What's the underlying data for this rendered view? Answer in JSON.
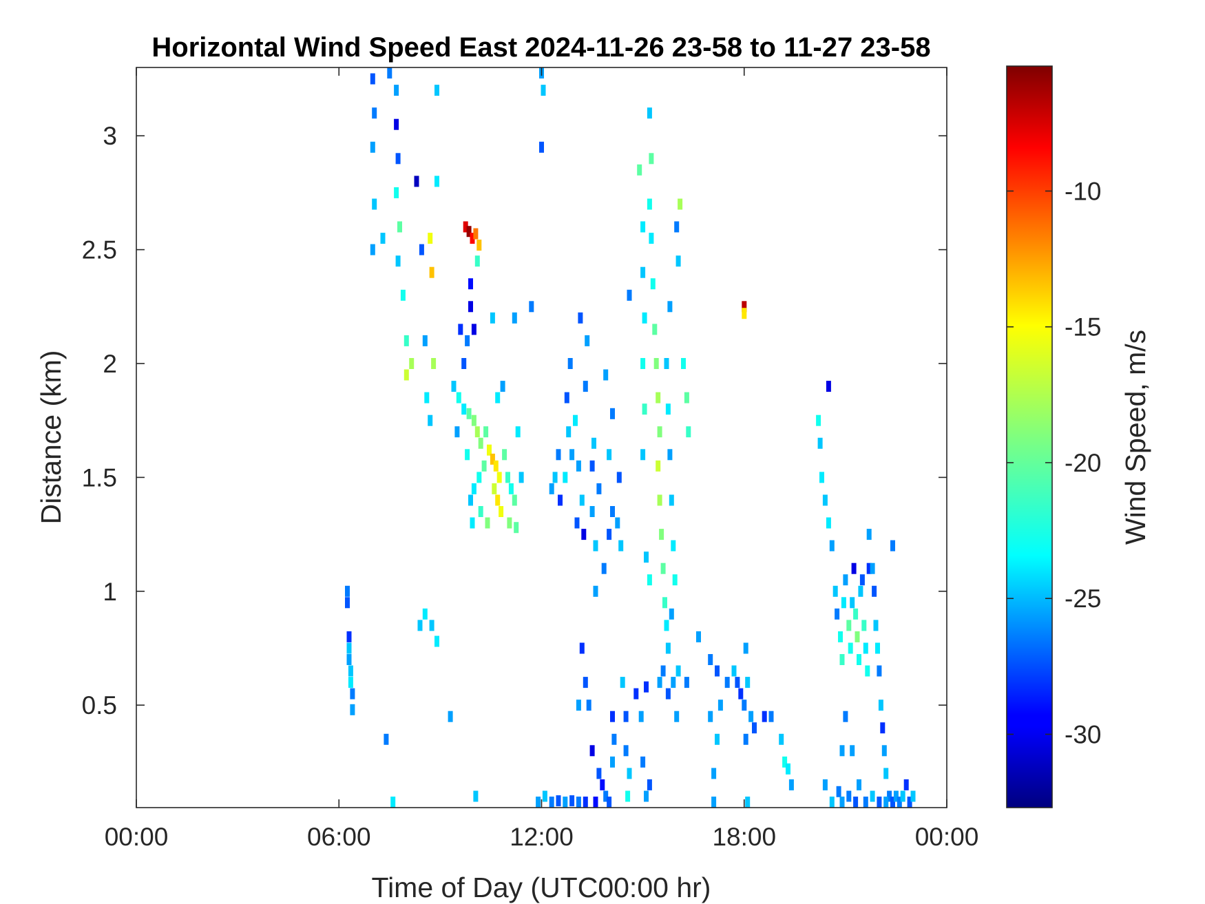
{
  "chart_data": {
    "type": "heatmap",
    "title": "Horizontal Wind Speed East 2024-11-26 23-58 to 11-27 23-58",
    "xlabel": "Time of Day (UTC00:00 hr)",
    "ylabel": "Distance (km)",
    "colorbar_label": "Wind Speed, m/s",
    "colormap": "jet",
    "x_ticks": [
      {
        "value": 0,
        "label": "00:00"
      },
      {
        "value": 6,
        "label": "06:00"
      },
      {
        "value": 12,
        "label": "12:00"
      },
      {
        "value": 18,
        "label": "18:00"
      },
      {
        "value": 24,
        "label": "00:00"
      }
    ],
    "y_ticks": [
      {
        "value": 0.5,
        "label": "0.5"
      },
      {
        "value": 1,
        "label": "1"
      },
      {
        "value": 1.5,
        "label": "1.5"
      },
      {
        "value": 2,
        "label": "2"
      },
      {
        "value": 2.5,
        "label": "2.5"
      },
      {
        "value": 3,
        "label": "3"
      }
    ],
    "colorbar_ticks": [
      {
        "value": -10,
        "label": "-10"
      },
      {
        "value": -15,
        "label": "-15"
      },
      {
        "value": -20,
        "label": "-20"
      },
      {
        "value": -25,
        "label": "-25"
      },
      {
        "value": -30,
        "label": "-30"
      }
    ],
    "xlim": [
      0,
      24
    ],
    "ylim": [
      0.05,
      3.3
    ],
    "clim": [
      -32.7,
      -5.4
    ],
    "grid": false,
    "cells": [
      [
        6.25,
        1.0,
        -26
      ],
      [
        6.25,
        0.95,
        -27
      ],
      [
        6.3,
        0.8,
        -28
      ],
      [
        6.3,
        0.75,
        -24
      ],
      [
        6.3,
        0.7,
        -25
      ],
      [
        6.35,
        0.65,
        -24
      ],
      [
        6.35,
        0.6,
        -23
      ],
      [
        6.4,
        0.55,
        -26
      ],
      [
        6.4,
        0.48,
        -25
      ],
      [
        7.0,
        3.25,
        -27
      ],
      [
        7.05,
        3.1,
        -26
      ],
      [
        7.0,
        2.95,
        -25
      ],
      [
        7.05,
        2.7,
        -24
      ],
      [
        7.0,
        2.5,
        -25
      ],
      [
        7.3,
        2.55,
        -24
      ],
      [
        7.5,
        3.3,
        -26
      ],
      [
        7.7,
        3.2,
        -25
      ],
      [
        7.7,
        3.05,
        -30
      ],
      [
        7.75,
        2.9,
        -27
      ],
      [
        7.7,
        2.75,
        -22
      ],
      [
        7.8,
        2.6,
        -20
      ],
      [
        7.75,
        2.45,
        -24
      ],
      [
        7.9,
        2.3,
        -22
      ],
      [
        8.0,
        2.1,
        -21
      ],
      [
        8.0,
        1.95,
        -17
      ],
      [
        8.15,
        2.0,
        -18
      ],
      [
        8.3,
        2.8,
        -31
      ],
      [
        8.45,
        2.5,
        -27
      ],
      [
        8.55,
        2.1,
        -25
      ],
      [
        8.7,
        2.55,
        -16
      ],
      [
        8.75,
        2.4,
        -14
      ],
      [
        8.8,
        2.0,
        -18
      ],
      [
        8.9,
        3.2,
        -24
      ],
      [
        8.9,
        2.8,
        -23
      ],
      [
        8.6,
        1.85,
        -23
      ],
      [
        8.7,
        1.75,
        -24
      ],
      [
        8.4,
        0.85,
        -24
      ],
      [
        8.55,
        0.9,
        -23
      ],
      [
        8.75,
        0.85,
        -24
      ],
      [
        8.9,
        0.78,
        -23
      ],
      [
        7.4,
        0.35,
        -26
      ],
      [
        7.6,
        0.05,
        -23
      ],
      [
        9.3,
        0.45,
        -25
      ],
      [
        9.75,
        2.6,
        -8
      ],
      [
        9.85,
        2.58,
        -6
      ],
      [
        9.95,
        2.55,
        -9
      ],
      [
        10.05,
        2.57,
        -12
      ],
      [
        10.15,
        2.52,
        -14
      ],
      [
        10.1,
        2.45,
        -21
      ],
      [
        9.9,
        2.35,
        -29
      ],
      [
        9.9,
        2.25,
        -30
      ],
      [
        9.6,
        2.15,
        -28
      ],
      [
        9.8,
        2.1,
        -26
      ],
      [
        10.0,
        2.15,
        -30
      ],
      [
        9.4,
        1.9,
        -24
      ],
      [
        9.55,
        1.85,
        -22
      ],
      [
        9.7,
        1.8,
        -23
      ],
      [
        9.85,
        1.78,
        -20
      ],
      [
        10.0,
        1.75,
        -19
      ],
      [
        10.1,
        1.7,
        -18
      ],
      [
        10.2,
        1.65,
        -19
      ],
      [
        10.35,
        1.7,
        -20
      ],
      [
        10.45,
        1.62,
        -16
      ],
      [
        10.55,
        1.58,
        -14
      ],
      [
        10.65,
        1.55,
        -15
      ],
      [
        10.75,
        1.5,
        -16
      ],
      [
        10.6,
        1.45,
        -17
      ],
      [
        10.7,
        1.4,
        -15
      ],
      [
        10.8,
        1.35,
        -16
      ],
      [
        10.3,
        1.55,
        -20
      ],
      [
        10.15,
        1.5,
        -22
      ],
      [
        10.0,
        1.45,
        -23
      ],
      [
        9.9,
        1.4,
        -24
      ],
      [
        10.2,
        1.35,
        -21
      ],
      [
        10.4,
        1.3,
        -19
      ],
      [
        10.9,
        1.6,
        -20
      ],
      [
        11.0,
        1.5,
        -21
      ],
      [
        11.1,
        1.45,
        -22
      ],
      [
        11.2,
        1.4,
        -20
      ],
      [
        11.05,
        1.3,
        -19
      ],
      [
        11.25,
        1.28,
        -20
      ],
      [
        11.3,
        1.7,
        -23
      ],
      [
        11.4,
        1.5,
        -24
      ],
      [
        10.7,
        1.85,
        -23
      ],
      [
        10.85,
        1.9,
        -25
      ],
      [
        11.2,
        2.2,
        -25
      ],
      [
        10.55,
        2.2,
        -24
      ],
      [
        9.7,
        2.0,
        -27
      ],
      [
        9.5,
        1.7,
        -25
      ],
      [
        9.8,
        1.6,
        -22
      ],
      [
        9.95,
        1.3,
        -23
      ],
      [
        10.05,
        0.1,
        -24
      ],
      [
        11.7,
        2.25,
        -26
      ],
      [
        12.0,
        3.3,
        -25
      ],
      [
        12.05,
        3.2,
        -24
      ],
      [
        12.0,
        2.95,
        -27
      ],
      [
        12.3,
        1.45,
        -25
      ],
      [
        12.4,
        1.5,
        -24
      ],
      [
        12.5,
        1.6,
        -26
      ],
      [
        12.55,
        1.4,
        -28
      ],
      [
        12.7,
        1.5,
        -23
      ],
      [
        12.8,
        1.7,
        -24
      ],
      [
        12.9,
        1.6,
        -25
      ],
      [
        12.75,
        1.85,
        -27
      ],
      [
        12.85,
        2.0,
        -26
      ],
      [
        13.0,
        1.75,
        -23
      ],
      [
        13.1,
        1.55,
        -25
      ],
      [
        13.2,
        1.4,
        -24
      ],
      [
        13.3,
        1.9,
        -26
      ],
      [
        13.15,
        2.2,
        -27
      ],
      [
        13.35,
        2.1,
        -25
      ],
      [
        13.05,
        1.3,
        -27
      ],
      [
        13.25,
        1.25,
        -30
      ],
      [
        13.5,
        1.35,
        -25
      ],
      [
        13.6,
        1.2,
        -24
      ],
      [
        13.7,
        1.45,
        -26
      ],
      [
        13.5,
        1.55,
        -27
      ],
      [
        13.55,
        1.65,
        -24
      ],
      [
        13.9,
        1.95,
        -25
      ],
      [
        14.0,
        1.6,
        -24
      ],
      [
        14.1,
        1.35,
        -26
      ],
      [
        14.25,
        1.3,
        -25
      ],
      [
        14.3,
        1.5,
        -27
      ],
      [
        14.35,
        1.2,
        -24
      ],
      [
        14.1,
        1.78,
        -26
      ],
      [
        13.85,
        1.1,
        -26
      ],
      [
        14.0,
        1.25,
        -27
      ],
      [
        13.6,
        1.0,
        -25
      ],
      [
        14.6,
        2.3,
        -26
      ],
      [
        14.9,
        2.85,
        -20
      ],
      [
        15.0,
        2.6,
        -23
      ],
      [
        15.0,
        2.4,
        -24
      ],
      [
        15.05,
        2.2,
        -23
      ],
      [
        15.0,
        2.0,
        -22
      ],
      [
        15.05,
        1.8,
        -21
      ],
      [
        15.0,
        1.6,
        -24
      ],
      [
        15.2,
        3.1,
        -24
      ],
      [
        15.25,
        2.9,
        -20
      ],
      [
        15.2,
        2.7,
        -22
      ],
      [
        15.25,
        2.55,
        -23
      ],
      [
        15.3,
        2.35,
        -22
      ],
      [
        15.35,
        2.15,
        -20
      ],
      [
        15.4,
        2.0,
        -19
      ],
      [
        15.45,
        1.85,
        -18
      ],
      [
        15.5,
        1.7,
        -19
      ],
      [
        15.45,
        1.55,
        -17
      ],
      [
        15.5,
        1.4,
        -18
      ],
      [
        15.55,
        1.25,
        -19
      ],
      [
        15.6,
        1.1,
        -20
      ],
      [
        15.65,
        0.95,
        -21
      ],
      [
        15.7,
        0.85,
        -23
      ],
      [
        15.75,
        0.75,
        -24
      ],
      [
        15.8,
        2.25,
        -25
      ],
      [
        15.7,
        2.0,
        -24
      ],
      [
        15.75,
        1.8,
        -23
      ],
      [
        15.8,
        1.6,
        -25
      ],
      [
        15.85,
        1.4,
        -24
      ],
      [
        15.9,
        1.2,
        -23
      ],
      [
        15.95,
        1.05,
        -22
      ],
      [
        15.85,
        0.9,
        -25
      ],
      [
        16.1,
        2.7,
        -18
      ],
      [
        16.05,
        2.45,
        -24
      ],
      [
        16.2,
        2.0,
        -22
      ],
      [
        16.3,
        1.85,
        -20
      ],
      [
        16.35,
        1.7,
        -21
      ],
      [
        16.0,
        2.6,
        -26
      ],
      [
        15.1,
        1.15,
        -24
      ],
      [
        15.2,
        1.05,
        -22
      ],
      [
        18.0,
        2.25,
        -7
      ],
      [
        18.0,
        2.22,
        -15
      ],
      [
        13.2,
        0.75,
        -28
      ],
      [
        13.3,
        0.6,
        -27
      ],
      [
        13.4,
        0.5,
        -26
      ],
      [
        13.1,
        0.5,
        -25
      ],
      [
        13.5,
        0.3,
        -30
      ],
      [
        13.7,
        0.2,
        -27
      ],
      [
        13.8,
        0.15,
        -29
      ],
      [
        13.9,
        0.1,
        -26
      ],
      [
        14.1,
        0.45,
        -28
      ],
      [
        14.15,
        0.35,
        -26
      ],
      [
        14.1,
        0.25,
        -25
      ],
      [
        14.0,
        0.05,
        -27
      ],
      [
        13.6,
        0.05,
        -29
      ],
      [
        13.3,
        0.05,
        -28
      ],
      [
        13.1,
        0.05,
        -26
      ],
      [
        12.9,
        0.08,
        -27
      ],
      [
        12.7,
        0.05,
        -25
      ],
      [
        12.5,
        0.08,
        -27
      ],
      [
        12.3,
        0.05,
        -26
      ],
      [
        12.1,
        0.1,
        -24
      ],
      [
        11.9,
        0.05,
        -25
      ],
      [
        14.4,
        0.6,
        -24
      ],
      [
        14.5,
        0.45,
        -27
      ],
      [
        14.5,
        0.3,
        -26
      ],
      [
        14.6,
        0.2,
        -24
      ],
      [
        14.55,
        0.1,
        -22
      ],
      [
        14.8,
        0.55,
        -28
      ],
      [
        14.95,
        0.45,
        -25
      ],
      [
        15.0,
        0.25,
        -26
      ],
      [
        15.1,
        0.1,
        -25
      ],
      [
        15.2,
        0.15,
        -27
      ],
      [
        15.1,
        0.58,
        -28
      ],
      [
        15.5,
        0.6,
        -25
      ],
      [
        15.6,
        0.65,
        -26
      ],
      [
        15.75,
        0.55,
        -27
      ],
      [
        15.9,
        0.6,
        -25
      ],
      [
        16.05,
        0.65,
        -24
      ],
      [
        16.3,
        0.6,
        -26
      ],
      [
        16.0,
        0.45,
        -25
      ],
      [
        16.65,
        0.8,
        -25
      ],
      [
        17.0,
        0.7,
        -26
      ],
      [
        17.2,
        0.65,
        -27
      ],
      [
        17.3,
        0.5,
        -25
      ],
      [
        17.2,
        0.35,
        -24
      ],
      [
        17.1,
        0.2,
        -25
      ],
      [
        17.5,
        0.6,
        -26
      ],
      [
        17.7,
        0.65,
        -24
      ],
      [
        17.8,
        0.6,
        -27
      ],
      [
        17.9,
        0.55,
        -28
      ],
      [
        18.05,
        0.75,
        -25
      ],
      [
        18.1,
        0.6,
        -24
      ],
      [
        18.0,
        0.5,
        -26
      ],
      [
        18.2,
        0.45,
        -25
      ],
      [
        18.3,
        0.4,
        -27
      ],
      [
        18.05,
        0.35,
        -26
      ],
      [
        18.6,
        0.45,
        -28
      ],
      [
        18.8,
        0.45,
        -26
      ],
      [
        17.0,
        0.45,
        -25
      ],
      [
        19.1,
        0.35,
        -24
      ],
      [
        19.2,
        0.25,
        -22
      ],
      [
        19.3,
        0.22,
        -23
      ],
      [
        19.4,
        0.15,
        -25
      ],
      [
        17.1,
        0.05,
        -25
      ],
      [
        18.1,
        0.05,
        -24
      ],
      [
        20.5,
        1.9,
        -30
      ],
      [
        20.2,
        1.75,
        -22
      ],
      [
        20.25,
        1.65,
        -24
      ],
      [
        20.3,
        1.5,
        -23
      ],
      [
        20.4,
        1.4,
        -24
      ],
      [
        20.5,
        1.3,
        -23
      ],
      [
        20.6,
        1.2,
        -25
      ],
      [
        20.7,
        1.0,
        -24
      ],
      [
        20.75,
        0.9,
        -26
      ],
      [
        20.85,
        0.8,
        -22
      ],
      [
        20.9,
        0.7,
        -21
      ],
      [
        20.95,
        0.95,
        -23
      ],
      [
        21.0,
        1.05,
        -25
      ],
      [
        21.1,
        0.85,
        -20
      ],
      [
        21.15,
        0.75,
        -22
      ],
      [
        21.2,
        0.95,
        -24
      ],
      [
        21.25,
        1.1,
        -30
      ],
      [
        21.3,
        0.9,
        -21
      ],
      [
        21.35,
        0.8,
        -19
      ],
      [
        21.4,
        0.7,
        -22
      ],
      [
        21.45,
        1.0,
        -24
      ],
      [
        21.5,
        1.05,
        -27
      ],
      [
        21.55,
        0.85,
        -21
      ],
      [
        21.6,
        0.75,
        -23
      ],
      [
        21.65,
        0.65,
        -22
      ],
      [
        21.7,
        1.1,
        -28
      ],
      [
        21.8,
        1.1,
        -25
      ],
      [
        21.85,
        1.0,
        -27
      ],
      [
        21.9,
        0.85,
        -24
      ],
      [
        21.95,
        0.75,
        -23
      ],
      [
        22.0,
        0.65,
        -26
      ],
      [
        22.05,
        0.5,
        -24
      ],
      [
        22.1,
        0.4,
        -28
      ],
      [
        22.15,
        0.3,
        -25
      ],
      [
        22.2,
        0.2,
        -24
      ],
      [
        22.3,
        0.1,
        -26
      ],
      [
        22.4,
        0.05,
        -27
      ],
      [
        22.5,
        0.1,
        -25
      ],
      [
        22.6,
        0.05,
        -26
      ],
      [
        22.7,
        0.1,
        -24
      ],
      [
        22.8,
        0.15,
        -28
      ],
      [
        22.9,
        0.05,
        -27
      ],
      [
        23.0,
        0.1,
        -24
      ],
      [
        21.2,
        0.3,
        -25
      ],
      [
        21.1,
        0.1,
        -26
      ],
      [
        21.3,
        0.05,
        -27
      ],
      [
        21.4,
        0.15,
        -25
      ],
      [
        21.6,
        0.05,
        -26
      ],
      [
        21.8,
        0.1,
        -24
      ],
      [
        22.0,
        0.05,
        -27
      ],
      [
        22.2,
        0.05,
        -25
      ],
      [
        20.4,
        0.15,
        -25
      ],
      [
        20.6,
        0.05,
        -24
      ],
      [
        20.8,
        0.12,
        -26
      ],
      [
        20.9,
        0.3,
        -25
      ],
      [
        21.0,
        0.45,
        -26
      ],
      [
        20.9,
        0.05,
        -25
      ],
      [
        22.4,
        1.2,
        -26
      ],
      [
        21.7,
        1.25,
        -25
      ]
    ]
  }
}
